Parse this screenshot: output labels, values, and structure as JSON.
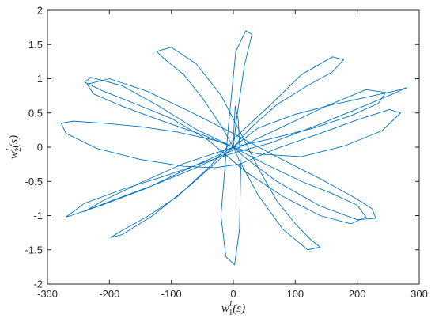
{
  "chart_data": {
    "type": "line",
    "title": "",
    "xlabel": {
      "base": "w",
      "sup": "I",
      "sub": "1",
      "arg": "(s)"
    },
    "ylabel": {
      "base": "w",
      "sup": "I",
      "sub": "2",
      "arg": "(s)"
    },
    "xlim": [
      -300,
      300
    ],
    "ylim": [
      -2,
      2
    ],
    "xticks": [
      -300,
      -200,
      -100,
      0,
      100,
      200,
      300
    ],
    "yticks": [
      -2,
      -1.5,
      -1,
      -0.5,
      0,
      0.5,
      1,
      1.5,
      2
    ],
    "xtick_labels": [
      "-300",
      "-200",
      "-100",
      "0",
      "100",
      "200",
      "300"
    ],
    "ytick_labels": [
      "-2",
      "-1.5",
      "-1",
      "-0.5",
      "0",
      "0.5",
      "1",
      "1.5",
      "2"
    ],
    "grid": false,
    "legend": "none",
    "series": [
      {
        "color": "#0072BD",
        "x": [
          0,
          5,
          18,
          30,
          20,
          4,
          -8,
          -20,
          -12,
          2,
          10,
          12,
          8,
          3,
          0
        ],
        "y": [
          0,
          0.4,
          1.2,
          1.65,
          1.7,
          1.4,
          0.3,
          -1.0,
          -1.6,
          -1.72,
          -1.2,
          -0.3,
          0.4,
          0.6,
          0.1
        ]
      },
      {
        "color": "#0072BD",
        "x": [
          0,
          40,
          100,
          160,
          220,
          265,
          280,
          258,
          200,
          130,
          60,
          10,
          -40,
          -110,
          -180,
          -240,
          -270,
          -262,
          -210,
          -140,
          -70,
          -20,
          0
        ],
        "y": [
          0,
          0.28,
          0.48,
          0.62,
          0.74,
          0.83,
          0.87,
          0.78,
          0.56,
          0.3,
          0.06,
          -0.06,
          -0.2,
          -0.42,
          -0.62,
          -0.82,
          -1.02,
          -1.0,
          -0.84,
          -0.6,
          -0.3,
          -0.1,
          0
        ]
      },
      {
        "color": "#0072BD",
        "x": [
          0,
          -30,
          -90,
          -150,
          -210,
          -258,
          -278,
          -270,
          -220,
          -150,
          -80,
          -30,
          10,
          70,
          140,
          200,
          252,
          270,
          240,
          180,
          110,
          40,
          0
        ],
        "y": [
          0,
          0.1,
          0.22,
          0.3,
          0.35,
          0.38,
          0.35,
          0.2,
          -0.02,
          -0.18,
          -0.28,
          -0.3,
          -0.25,
          -0.02,
          0.2,
          0.4,
          0.55,
          0.5,
          0.24,
          0.02,
          -0.14,
          -0.1,
          0
        ]
      },
      {
        "color": "#0072BD",
        "x": [
          0,
          50,
          110,
          160,
          200,
          214,
          190,
          140,
          80,
          20,
          -40,
          -100,
          -160,
          -210,
          -240,
          -230,
          -180,
          -120,
          -60,
          0
        ],
        "y": [
          0,
          -0.24,
          -0.5,
          -0.68,
          -0.85,
          -1.02,
          -1.12,
          -1.0,
          -0.72,
          -0.36,
          0.1,
          0.42,
          0.64,
          0.82,
          0.95,
          1.02,
          0.9,
          0.6,
          0.26,
          0
        ]
      },
      {
        "color": "#0072BD",
        "x": [
          0,
          30,
          70,
          120,
          160,
          178,
          160,
          110,
          60,
          10,
          -40,
          -90,
          -140,
          -180,
          -198,
          -180,
          -130,
          -70,
          -20,
          0
        ],
        "y": [
          0,
          0.3,
          0.62,
          0.9,
          1.1,
          1.28,
          1.32,
          1.06,
          0.62,
          0.2,
          -0.3,
          -0.72,
          -1.02,
          -1.22,
          -1.32,
          -1.28,
          -1.0,
          -0.56,
          -0.16,
          0
        ]
      },
      {
        "color": "#0072BD",
        "x": [
          0,
          -20,
          -50,
          -80,
          -110,
          -124,
          -100,
          -60,
          -20,
          10,
          40,
          70,
          100,
          126,
          140,
          120,
          80,
          40,
          10,
          0
        ],
        "y": [
          0,
          0.32,
          0.72,
          1.06,
          1.28,
          1.4,
          1.46,
          1.22,
          0.76,
          0.24,
          -0.3,
          -0.78,
          -1.12,
          -1.36,
          -1.46,
          -1.5,
          -1.2,
          -0.7,
          -0.2,
          0
        ]
      },
      {
        "color": "#0072BD",
        "x": [
          0,
          60,
          130,
          190,
          234,
          246,
          214,
          150,
          80,
          10,
          -60,
          -130,
          -190,
          -230,
          -240,
          -210,
          -150,
          -80,
          -20,
          0
        ],
        "y": [
          0,
          0.12,
          0.28,
          0.46,
          0.64,
          0.8,
          0.84,
          0.6,
          0.3,
          0.0,
          -0.3,
          -0.56,
          -0.76,
          -0.9,
          -0.94,
          -0.78,
          -0.52,
          -0.24,
          -0.06,
          0
        ]
      },
      {
        "color": "#0072BD",
        "x": [
          0,
          -50,
          -120,
          -180,
          -226,
          -236,
          -200,
          -140,
          -70,
          0,
          70,
          140,
          196,
          224,
          230,
          200,
          140,
          70,
          20,
          0
        ],
        "y": [
          0,
          0.18,
          0.4,
          0.6,
          0.78,
          0.92,
          1.0,
          0.82,
          0.52,
          0.2,
          -0.14,
          -0.46,
          -0.74,
          -0.9,
          -1.04,
          -1.06,
          -0.86,
          -0.5,
          -0.16,
          0
        ]
      }
    ]
  }
}
